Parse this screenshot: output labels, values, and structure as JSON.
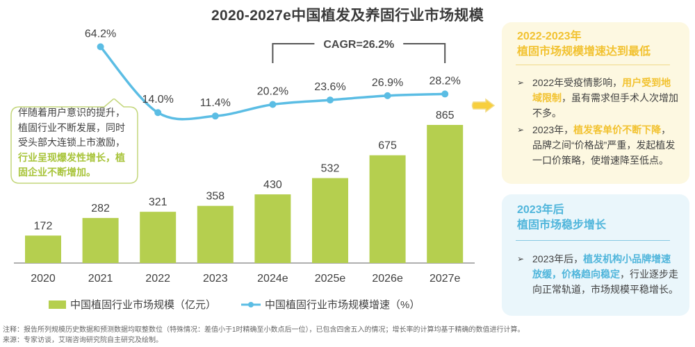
{
  "title": "2020-2027e中国植发及养固行业市场规模",
  "chart_data": {
    "type": "bar+line",
    "title": "2020-2027e中国植发及养固行业市场规模",
    "categories": [
      "2020",
      "2021",
      "2022",
      "2023",
      "2024e",
      "2025e",
      "2026e",
      "2027e"
    ],
    "series": [
      {
        "name": "中国植固行业市场规模（亿元）",
        "type": "bar",
        "color": "#b5cf4f",
        "values": [
          172,
          282,
          321,
          358,
          430,
          532,
          675,
          865
        ],
        "labels": [
          "172",
          "282",
          "321",
          "358",
          "430",
          "532",
          "675",
          "865"
        ]
      },
      {
        "name": "中国植固行业市场规模增速（%）",
        "type": "line",
        "color": "#5bbde4",
        "values": [
          null,
          64.2,
          14.0,
          11.4,
          20.2,
          23.6,
          26.9,
          28.2
        ],
        "labels": [
          "",
          "64.2%",
          "14.0%",
          "11.4%",
          "20.2%",
          "23.6%",
          "26.9%",
          "28.2%"
        ]
      }
    ],
    "annotation": {
      "text": "CAGR=26.2%",
      "from": "2024e",
      "to": "2027e"
    },
    "legend": "bottom",
    "grid": false,
    "ylim_bar": [
      0,
      900
    ]
  },
  "callout": {
    "lines_normal": [
      "伴随着用户意识的提升，",
      "植固行业不断发展，同时",
      "受头部大连锁上市激励，"
    ],
    "lines_highlight": [
      "行业呈现爆发性增长，植",
      "固企业不断增加。"
    ]
  },
  "panel_yellow": {
    "heading_1": "2022-2023年",
    "heading_2": "植固市场规模增速达到最低",
    "bullet_1": {
      "pre": "2022年受疫情影响，",
      "hl": "用户受到地域限制",
      "post": "，虽有需求但手术人次增加不多。"
    },
    "bullet_2": {
      "pre": "2023年，",
      "hl": "植发客单价不断下降",
      "post": "，品牌之间“价格战”严重，发起植发一口价策略，使增速降至低点。"
    },
    "accent": "#f2c230"
  },
  "panel_blue": {
    "heading_1": "2023年后",
    "heading_2": "植固市场稳步增长",
    "bullet_1": {
      "pre": "2023年后，",
      "hl": "植发机构小品牌增速放缓，价格趋向稳定",
      "post": "，行业逐步走向正常轨道，市场规模平稳增长。"
    },
    "accent": "#4fb5db"
  },
  "legend": {
    "bar_label": "中国植固行业市场规模（亿元）",
    "line_label": "中国植固行业市场规模增速（%）"
  },
  "notes": {
    "note": "注释：报告所列规模历史数据和预测数据均取整数位（特殊情况：差值小于1时精确至小数点后一位），已包含四舍五入的情况；增长率的计算均基于精确的数值进行计算。",
    "source": "来源：专家访谈，艾瑞咨询研究院自主研究及绘制。"
  }
}
